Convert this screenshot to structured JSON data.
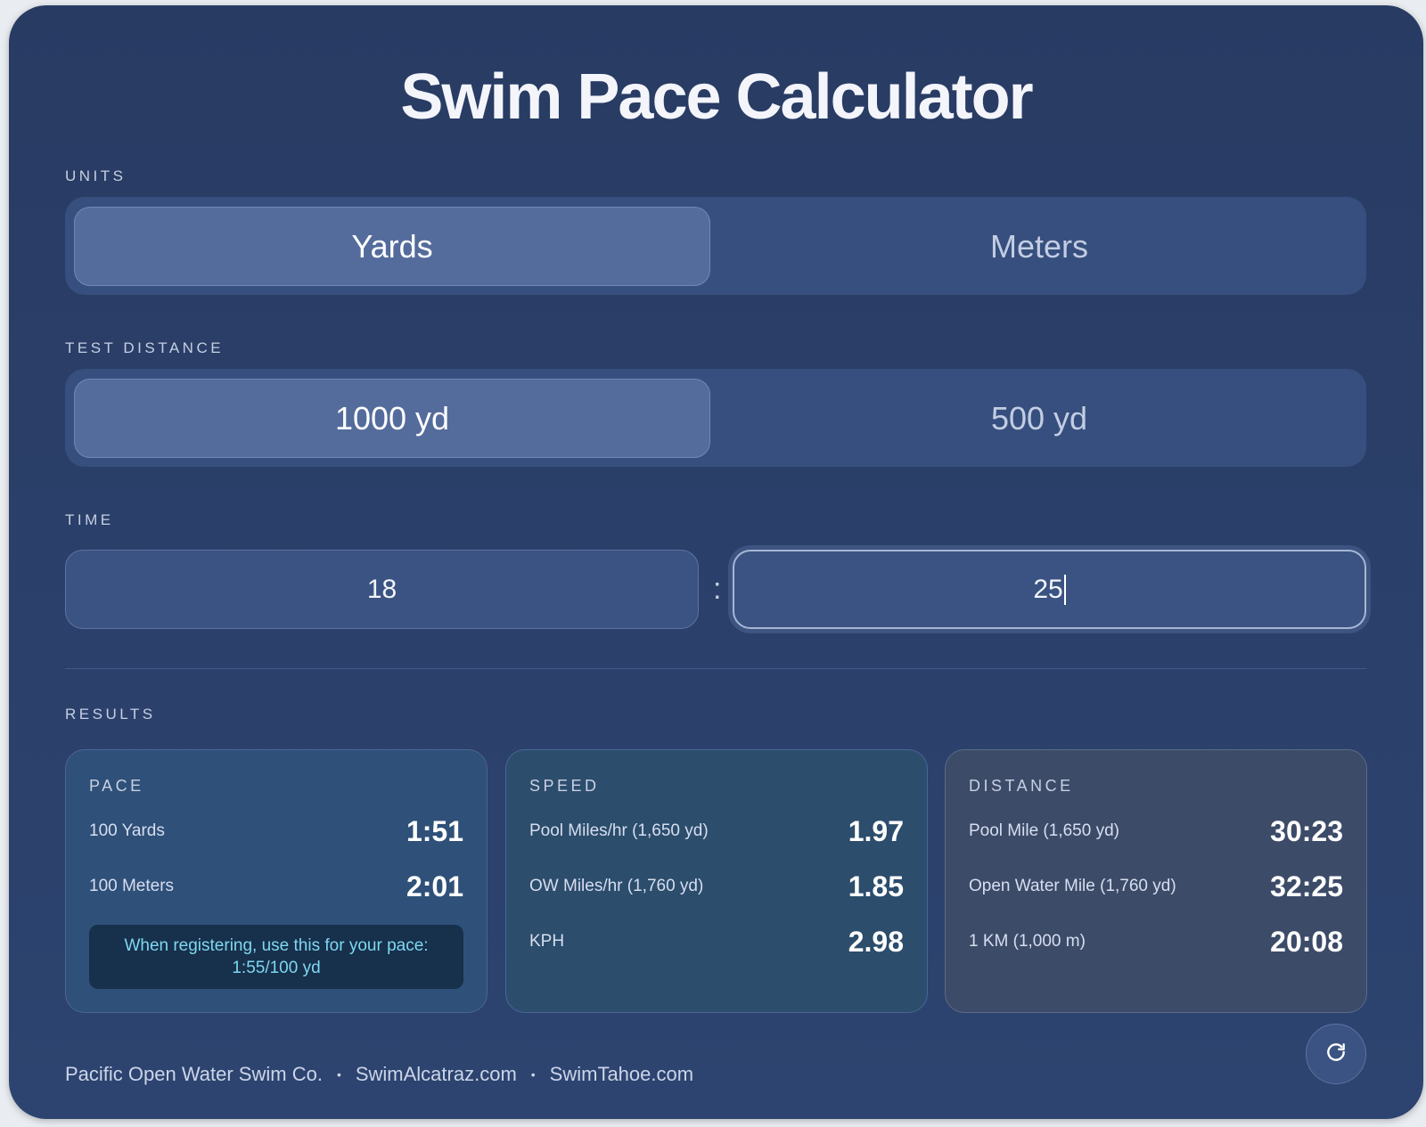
{
  "title": "Swim Pace Calculator",
  "units": {
    "label": "UNITS",
    "options": [
      "Yards",
      "Meters"
    ],
    "selected": "Yards"
  },
  "test_distance": {
    "label": "TEST DISTANCE",
    "options": [
      "1000 yd",
      "500 yd"
    ],
    "selected": "1000 yd"
  },
  "time": {
    "label": "TIME",
    "minutes": "18",
    "separator": ":",
    "seconds": "25"
  },
  "results": {
    "label": "RESULTS",
    "pace": {
      "title": "PACE",
      "rows": [
        {
          "label": "100 Yards",
          "value": "1:51"
        },
        {
          "label": "100 Meters",
          "value": "2:01"
        }
      ],
      "note": "When registering, use this for your pace: 1:55/100 yd"
    },
    "speed": {
      "title": "SPEED",
      "rows": [
        {
          "label": "Pool Miles/hr (1,650 yd)",
          "value": "1.97"
        },
        {
          "label": "OW Miles/hr (1,760 yd)",
          "value": "1.85"
        },
        {
          "label": "KPH",
          "value": "2.98"
        }
      ]
    },
    "distance": {
      "title": "DISTANCE",
      "rows": [
        {
          "label": "Pool Mile (1,650 yd)",
          "value": "30:23"
        },
        {
          "label": "Open Water Mile (1,760 yd)",
          "value": "32:25"
        },
        {
          "label": "1 KM (1,000 m)",
          "value": "20:08"
        }
      ]
    }
  },
  "footer": {
    "links": [
      "Pacific Open Water Swim Co.",
      "SwimAlcatraz.com",
      "SwimTahoe.com"
    ],
    "separator": "•"
  },
  "icons": {
    "refresh": "refresh-icon"
  },
  "colors": {
    "background": "#283b63",
    "active_segment": "#546c9c",
    "note_text": "#7ed7f0"
  }
}
